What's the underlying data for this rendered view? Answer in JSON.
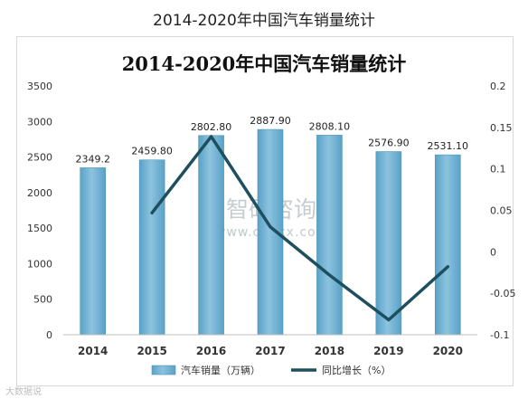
{
  "page_title": "2014-2020年中国汽车销量统计",
  "watermark": {
    "brand": "智研咨询",
    "url": "www.chyxx.com"
  },
  "footer_note": "大数据说",
  "colors": {
    "bar": "#5aa2c7",
    "bar_top": "#8cc3df",
    "line": "#1d4f5e"
  },
  "chart_data": {
    "type": "bar",
    "title": "2014-2020年中国汽车销量统计",
    "categories": [
      "2014",
      "2015",
      "2016",
      "2017",
      "2018",
      "2019",
      "2020"
    ],
    "series": [
      {
        "name": "汽车销量（万辆）",
        "type": "bar",
        "axis": "left",
        "values": [
          2349.2,
          2459.8,
          2802.8,
          2887.9,
          2808.1,
          2576.9,
          2531.1
        ],
        "labels": [
          "2349.2",
          "2459.80",
          "2802.80",
          "2887.90",
          "2808.10",
          "2576.90",
          "2531.10"
        ]
      },
      {
        "name": "同比增长（%）",
        "type": "line",
        "axis": "right",
        "values": [
          null,
          0.047,
          0.139,
          0.03,
          -0.028,
          -0.082,
          -0.018
        ]
      }
    ],
    "y_left": {
      "min": 0,
      "max": 3500,
      "ticks": [
        "0",
        "500",
        "1000",
        "1500",
        "2000",
        "2500",
        "3000",
        "3500"
      ]
    },
    "y_right": {
      "min": -0.1,
      "max": 0.2,
      "ticks": [
        "-0.1",
        "-0.05",
        "0",
        "0.05",
        "0.1",
        "0.15",
        "0.2"
      ]
    },
    "grid": false,
    "legend_position": "bottom"
  }
}
